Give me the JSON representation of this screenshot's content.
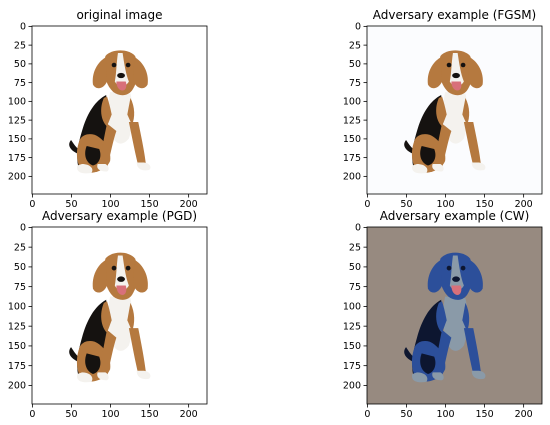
{
  "panels": [
    {
      "title": "original image",
      "variant": "original",
      "x_ticks": [
        "0",
        "50",
        "100",
        "150",
        "200"
      ],
      "y_ticks": [
        "0",
        "25",
        "50",
        "75",
        "100",
        "125",
        "150",
        "175",
        "200"
      ]
    },
    {
      "title": "Adversary example (FGSM)",
      "variant": "fgsm",
      "x_ticks": [
        "0",
        "50",
        "100",
        "150",
        "200"
      ],
      "y_ticks": [
        "0",
        "25",
        "50",
        "75",
        "100",
        "125",
        "150",
        "175",
        "200"
      ]
    },
    {
      "title": "Adversary example (PGD)",
      "variant": "pgd",
      "x_ticks": [
        "0",
        "50",
        "100",
        "150",
        "200"
      ],
      "y_ticks": [
        "0",
        "25",
        "50",
        "75",
        "100",
        "125",
        "150",
        "175",
        "200"
      ]
    },
    {
      "title": "Adversary example (CW)",
      "variant": "cw",
      "x_ticks": [
        "0",
        "50",
        "100",
        "150",
        "200"
      ],
      "y_ticks": [
        "0",
        "25",
        "50",
        "75",
        "100",
        "125",
        "150",
        "175",
        "200"
      ]
    }
  ],
  "colors": {
    "normal_background": "#ffffff",
    "fgsm_background": "#fbfcfe",
    "cw_background": "#978a80",
    "tan": "#b5793f",
    "black": "#151210",
    "white": "#f4f2ee",
    "cw_blue": "#2c4f9a",
    "cw_dark": "#0d1630",
    "cw_white": "#8a9aa8",
    "tongue": "#d8707a"
  }
}
